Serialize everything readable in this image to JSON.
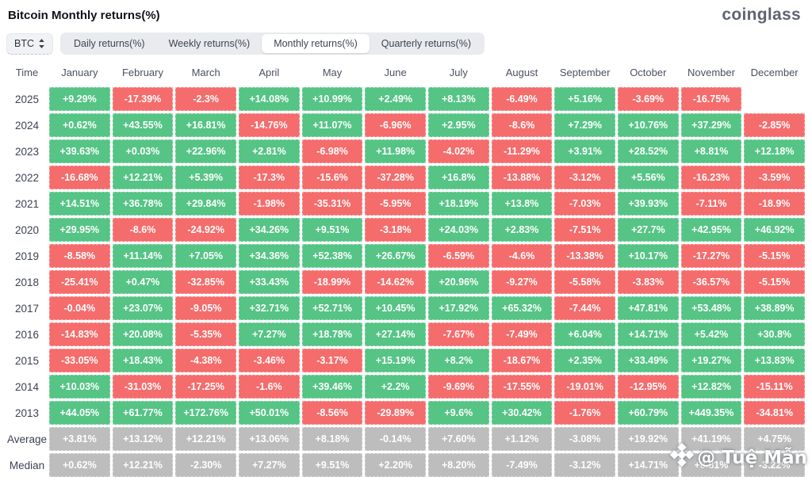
{
  "header": {
    "title": "Bitcoin Monthly returns(%)",
    "logo": "coinglass"
  },
  "toolbar": {
    "coin": "BTC",
    "tabs": [
      {
        "label": "Daily returns(%)",
        "active": false
      },
      {
        "label": "Weekly returns(%)",
        "active": false
      },
      {
        "label": "Monthly returns(%)",
        "active": true
      },
      {
        "label": "Quarterly returns(%)",
        "active": false
      }
    ]
  },
  "colors": {
    "positive": "#55c485",
    "negative": "#f56c6c",
    "summary": "#bdbdbd"
  },
  "watermark": {
    "icon": "diamond-logo",
    "text": "@ Tuệ Mẫn"
  },
  "chart_data": {
    "type": "heatmap",
    "title": "Bitcoin Monthly returns(%)",
    "row_header": "Time",
    "columns": [
      "January",
      "February",
      "March",
      "April",
      "May",
      "June",
      "July",
      "August",
      "September",
      "October",
      "November",
      "December"
    ],
    "rows": [
      {
        "label": "2025",
        "kind": "year",
        "values": [
          "+9.29%",
          "-17.39%",
          "-2.3%",
          "+14.08%",
          "+10.99%",
          "+2.49%",
          "+8.13%",
          "-6.49%",
          "+5.16%",
          "-3.69%",
          "-16.75%",
          null
        ]
      },
      {
        "label": "2024",
        "kind": "year",
        "values": [
          "+0.62%",
          "+43.55%",
          "+16.81%",
          "-14.76%",
          "+11.07%",
          "-6.96%",
          "+2.95%",
          "-8.6%",
          "+7.29%",
          "+10.76%",
          "+37.29%",
          "-2.85%"
        ]
      },
      {
        "label": "2023",
        "kind": "year",
        "values": [
          "+39.63%",
          "+0.03%",
          "+22.96%",
          "+2.81%",
          "-6.98%",
          "+11.98%",
          "-4.02%",
          "-11.29%",
          "+3.91%",
          "+28.52%",
          "+8.81%",
          "+12.18%"
        ]
      },
      {
        "label": "2022",
        "kind": "year",
        "values": [
          "-16.68%",
          "+12.21%",
          "+5.39%",
          "-17.3%",
          "-15.6%",
          "-37.28%",
          "+16.8%",
          "-13.88%",
          "-3.12%",
          "+5.56%",
          "-16.23%",
          "-3.59%"
        ]
      },
      {
        "label": "2021",
        "kind": "year",
        "values": [
          "+14.51%",
          "+36.78%",
          "+29.84%",
          "-1.98%",
          "-35.31%",
          "-5.95%",
          "+18.19%",
          "+13.8%",
          "-7.03%",
          "+39.93%",
          "-7.11%",
          "-18.9%"
        ]
      },
      {
        "label": "2020",
        "kind": "year",
        "values": [
          "+29.95%",
          "-8.6%",
          "-24.92%",
          "+34.26%",
          "+9.51%",
          "-3.18%",
          "+24.03%",
          "+2.83%",
          "-7.51%",
          "+27.7%",
          "+42.95%",
          "+46.92%"
        ]
      },
      {
        "label": "2019",
        "kind": "year",
        "values": [
          "-8.58%",
          "+11.14%",
          "+7.05%",
          "+34.36%",
          "+52.38%",
          "+26.67%",
          "-6.59%",
          "-4.6%",
          "-13.38%",
          "+10.17%",
          "-17.27%",
          "-5.15%"
        ]
      },
      {
        "label": "2018",
        "kind": "year",
        "values": [
          "-25.41%",
          "+0.47%",
          "-32.85%",
          "+33.43%",
          "-18.99%",
          "-14.62%",
          "+20.96%",
          "-9.27%",
          "-5.58%",
          "-3.83%",
          "-36.57%",
          "-5.15%"
        ]
      },
      {
        "label": "2017",
        "kind": "year",
        "values": [
          "-0.04%",
          "+23.07%",
          "-9.05%",
          "+32.71%",
          "+52.71%",
          "+10.45%",
          "+17.92%",
          "+65.32%",
          "-7.44%",
          "+47.81%",
          "+53.48%",
          "+38.89%"
        ]
      },
      {
        "label": "2016",
        "kind": "year",
        "values": [
          "-14.83%",
          "+20.08%",
          "-5.35%",
          "+7.27%",
          "+18.78%",
          "+27.14%",
          "-7.67%",
          "-7.49%",
          "+6.04%",
          "+14.71%",
          "+5.42%",
          "+30.8%"
        ]
      },
      {
        "label": "2015",
        "kind": "year",
        "values": [
          "-33.05%",
          "+18.43%",
          "-4.38%",
          "-3.46%",
          "-3.17%",
          "+15.19%",
          "+8.2%",
          "-18.67%",
          "+2.35%",
          "+33.49%",
          "+19.27%",
          "+13.83%"
        ]
      },
      {
        "label": "2014",
        "kind": "year",
        "values": [
          "+10.03%",
          "-31.03%",
          "-17.25%",
          "-1.6%",
          "+39.46%",
          "+2.2%",
          "-9.69%",
          "-17.55%",
          "-19.01%",
          "-12.95%",
          "+12.82%",
          "-15.11%"
        ]
      },
      {
        "label": "2013",
        "kind": "year",
        "values": [
          "+44.05%",
          "+61.77%",
          "+172.76%",
          "+50.01%",
          "-8.56%",
          "-29.89%",
          "+9.6%",
          "+30.42%",
          "-1.76%",
          "+60.79%",
          "+449.35%",
          "-34.81%"
        ]
      },
      {
        "label": "Average",
        "kind": "summary",
        "values": [
          "+3.81%",
          "+13.12%",
          "+12.21%",
          "+13.06%",
          "+8.18%",
          "-0.14%",
          "+7.60%",
          "+1.12%",
          "-3.08%",
          "+19.92%",
          "+41.19%",
          "+4.75%"
        ]
      },
      {
        "label": "Median",
        "kind": "summary",
        "values": [
          "+0.62%",
          "+12.21%",
          "-2.30%",
          "+7.27%",
          "+9.51%",
          "+2.20%",
          "+8.20%",
          "-7.49%",
          "-3.12%",
          "+14.71%",
          "+8.81%",
          "-3.22%"
        ]
      }
    ]
  }
}
